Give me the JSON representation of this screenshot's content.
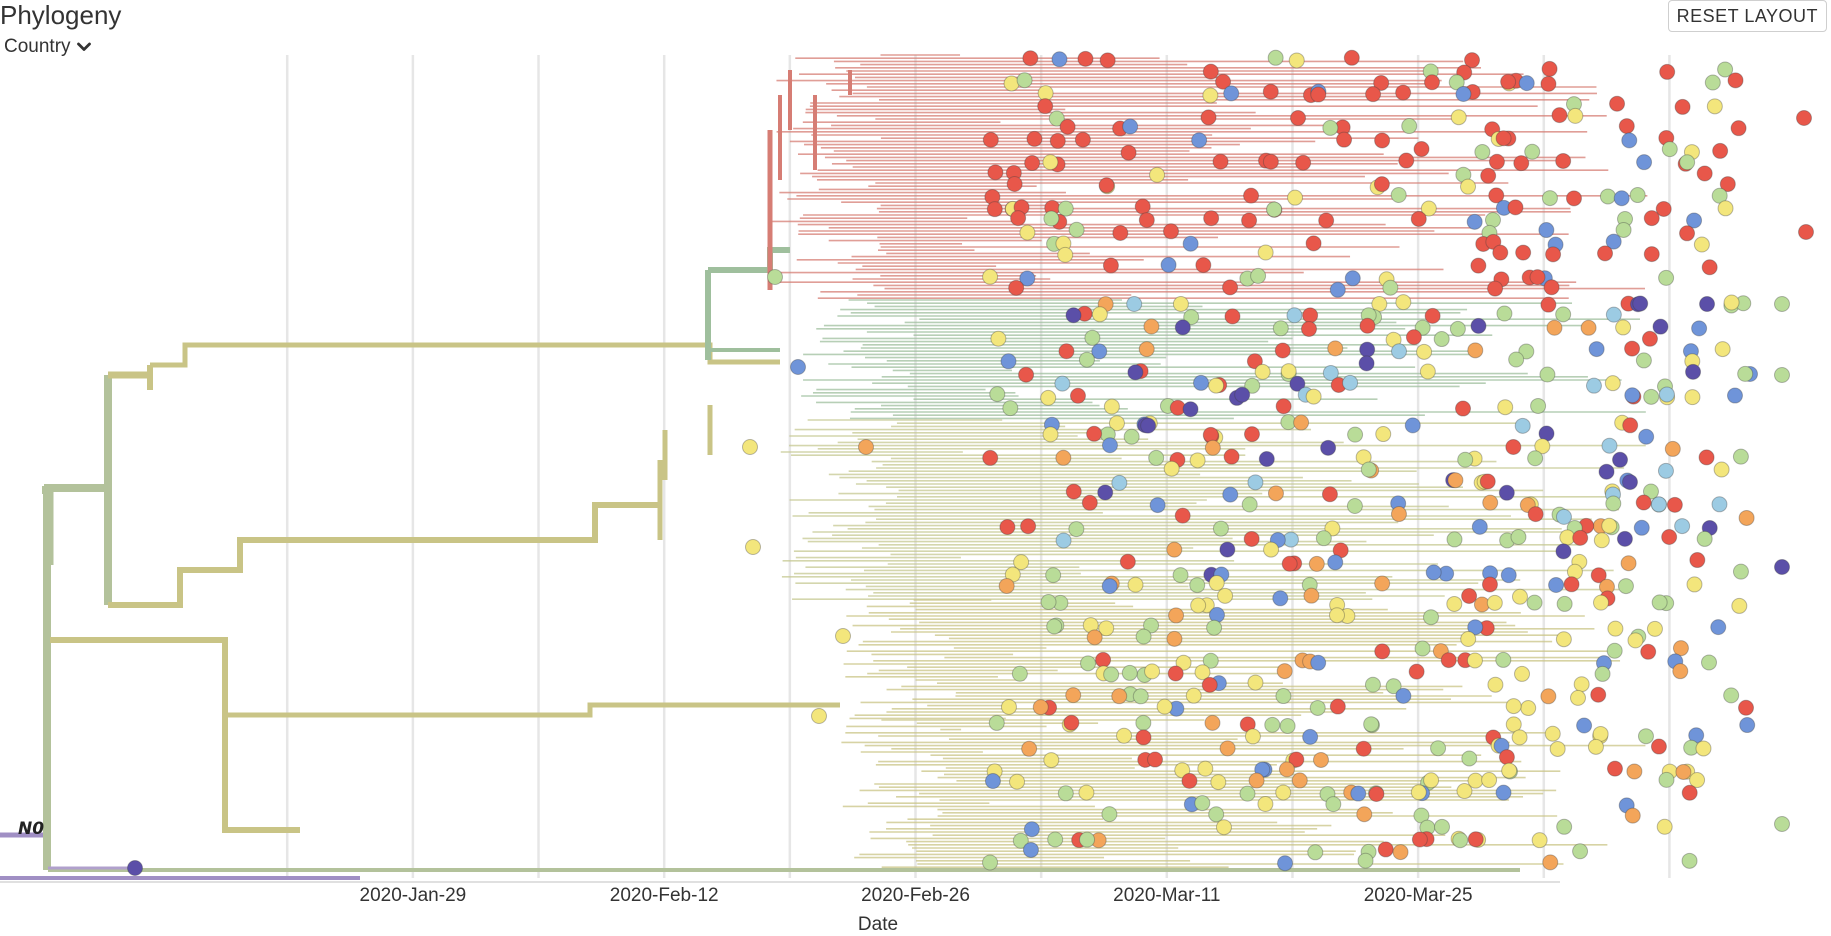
{
  "panel": {
    "title": "Phylogeny",
    "color_by_label": "Country",
    "color_by_icon": "chevron-down-icon",
    "reset_button_label": "RESET LAYOUT"
  },
  "chart_data": {
    "type": "phylogenetic-tree",
    "layout": "rectangular",
    "x_axis": {
      "label": "Date",
      "scale": "time",
      "range": [
        "2020-01-06",
        "2020-04-17"
      ],
      "ticks": [
        "2020-Jan-29",
        "2020-Feb-12",
        "2020-Feb-26",
        "2020-Mar-11",
        "2020-Mar-25"
      ],
      "tick_dates": [
        "2020-01-29",
        "2020-02-12",
        "2020-02-26",
        "2020-03-11",
        "2020-03-25"
      ]
    },
    "grid": true,
    "clade_labels": [
      {
        "text": "N0",
        "date": "2020-01-06"
      }
    ],
    "colors": {
      "trunk": "#b3c29b",
      "red_clade_branch": "#d67d74",
      "teal_clade_branch": "#9fbf9d",
      "yellow_clade_branch": "#c9c486",
      "tip_red": "#e8574a",
      "tip_green": "#b9dc98",
      "tip_yellow": "#f3e67c",
      "tip_blue": "#6f94d9",
      "tip_purple": "#5b4fa8",
      "tip_orange": "#f3a55a",
      "tip_lightblue": "#9ccbe3"
    },
    "seed": 7
  }
}
